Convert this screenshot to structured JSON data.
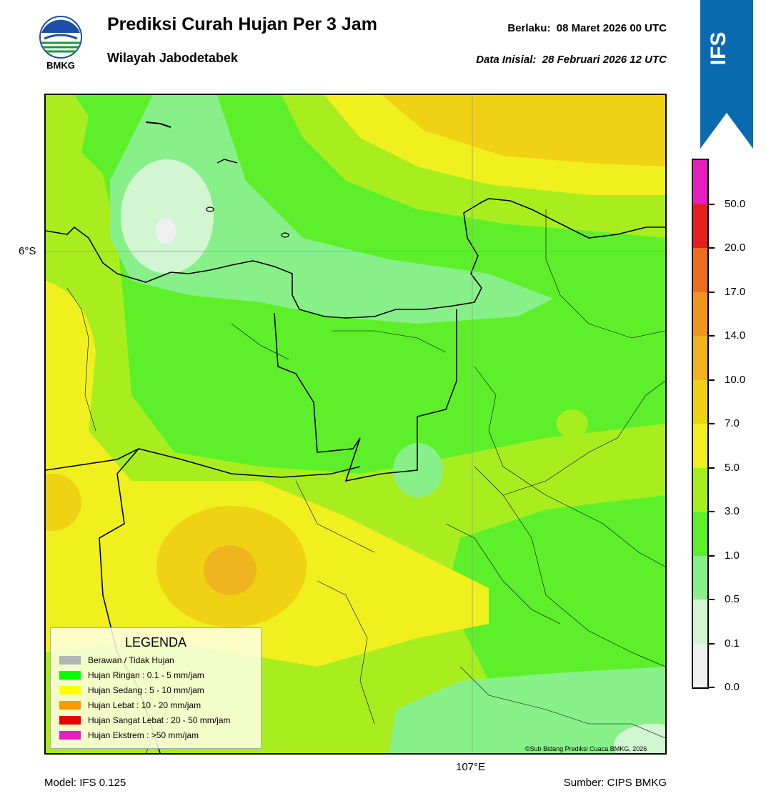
{
  "header": {
    "logo_text": "BMKG",
    "title": "Prediksi Curah Hujan Per 3 Jam",
    "subtitle": "Wilayah Jabodetabek",
    "valid_label": "Berlaku:",
    "valid_value": "08 Maret 2026 00 UTC",
    "initial_label": "Data Inisial:",
    "initial_value": "28 Februari 2026 12 UTC",
    "ribbon_text": "IFS"
  },
  "map": {
    "lat_label": "6°S",
    "lon_label": "107°E",
    "copyright": "©Sub Bidang Prediksi Cuaca BMKG, 2026"
  },
  "legend": {
    "title": "LEGENDA",
    "items": [
      {
        "label": "Berawan / Tidak Hujan",
        "color": "#b4b4b4"
      },
      {
        "label": "Hujan Ringan : 0.1 - 5 mm/jam",
        "color": "#00ff00"
      },
      {
        "label": "Hujan Sedang : 5 - 10 mm/jam",
        "color": "#ffff00"
      },
      {
        "label": "Hujan Lebat : 10 - 20 mm/jam",
        "color": "#ff9900"
      },
      {
        "label": "Hujan Sangat Lebat : 20 - 50 mm/jam",
        "color": "#e60000"
      },
      {
        "label": "Hujan Ekstrem : >50 mm/jam",
        "color": "#e61ebe"
      }
    ]
  },
  "colorbar": {
    "labels": [
      "0.0",
      "0.1",
      "0.5",
      "1.0",
      "3.0",
      "5.0",
      "7.0",
      "10.0",
      "14.0",
      "17.0",
      "20.0",
      "50.0"
    ],
    "colors": [
      "#f0f0f0",
      "#d2f5d2",
      "#88f088",
      "#5df02a",
      "#a8ee1e",
      "#f0f01e",
      "#f0d214",
      "#f0b41e",
      "#f0961e",
      "#eb6e1e",
      "#e61e1e",
      "#e61ebe"
    ]
  },
  "footer": {
    "model": "Model: IFS 0.125",
    "source": "Sumber: CIPS BMKG"
  }
}
